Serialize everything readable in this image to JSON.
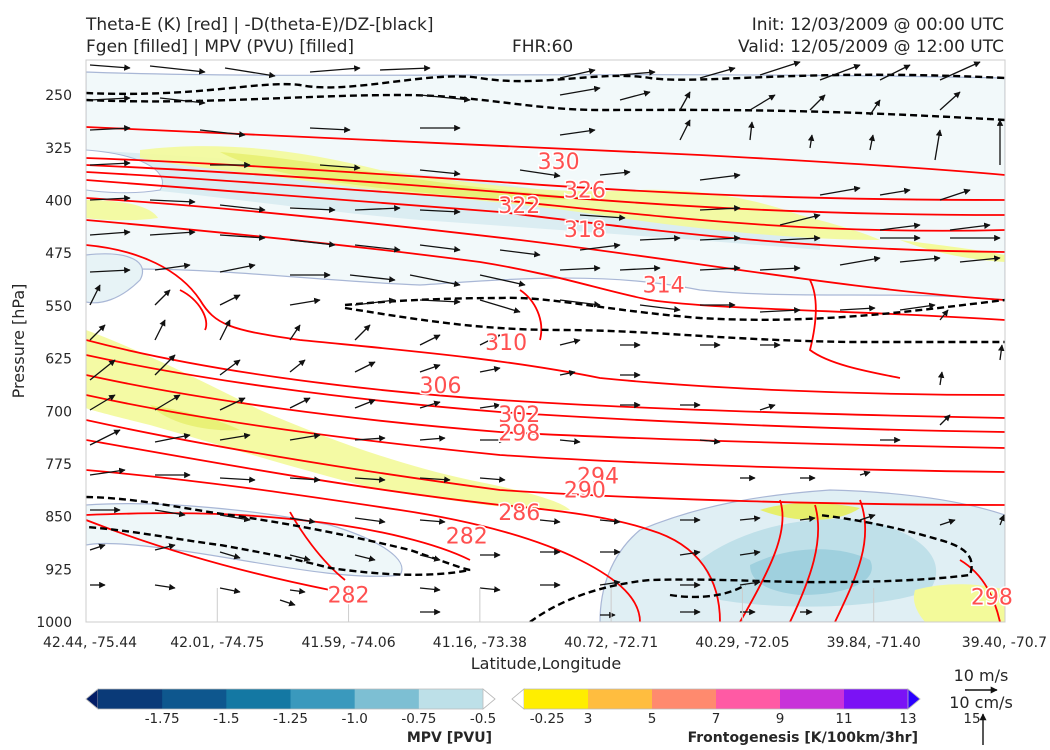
{
  "header": {
    "title_left_1": "Theta-E (K) [red] | -D(theta-E)/DZ-[black]",
    "title_left_2": "Fgen [filled] | MPV (PVU) [filled]",
    "fhr": "FHR:60",
    "init": "Init: 12/03/2009 @ 00:00 UTC",
    "valid": "Valid: 12/05/2009 @ 12:00 UTC"
  },
  "chart_data": {
    "type": "cross-section",
    "xlabel": "Latitude,Longitude",
    "ylabel": "Pressure [hPa]",
    "x_ticks": [
      "42.44, -75.44",
      "42.01, -74.75",
      "41.59, -74.06",
      "41.16, -73.38",
      "40.72, -72.71",
      "40.29, -72.05",
      "39.84, -71.40",
      "39.40, -70.7"
    ],
    "y_ticks": [
      250,
      325,
      400,
      475,
      550,
      625,
      700,
      775,
      850,
      925,
      1000
    ],
    "ylim": [
      1000,
      200
    ],
    "theta_e_contour_labels": [
      {
        "value": 330,
        "x_index": 3.6,
        "pressure": 345
      },
      {
        "value": 326,
        "x_index": 3.8,
        "pressure": 386
      },
      {
        "value": 322,
        "x_index": 3.3,
        "pressure": 408
      },
      {
        "value": 318,
        "x_index": 3.8,
        "pressure": 442
      },
      {
        "value": 314,
        "x_index": 4.4,
        "pressure": 521
      },
      {
        "value": 310,
        "x_index": 3.2,
        "pressure": 603
      },
      {
        "value": 306,
        "x_index": 2.7,
        "pressure": 664
      },
      {
        "value": 302,
        "x_index": 3.3,
        "pressure": 705
      },
      {
        "value": 298,
        "x_index": 3.3,
        "pressure": 732
      },
      {
        "value": 294,
        "x_index": 3.9,
        "pressure": 793
      },
      {
        "value": 290,
        "x_index": 3.8,
        "pressure": 813
      },
      {
        "value": 286,
        "x_index": 3.3,
        "pressure": 845
      },
      {
        "value": 282,
        "x_index": 2.9,
        "pressure": 878
      },
      {
        "value": 282,
        "x_index": 2.0,
        "pressure": 962
      },
      {
        "value": 298,
        "x_index": 6.9,
        "pressure": 965
      }
    ],
    "mpv_colorbar": {
      "label": "MPV [PVU]",
      "ticks": [
        "-1.75",
        "-1.5",
        "-1.25",
        "-1.0",
        "-0.75",
        "-0.5",
        "-0.25"
      ],
      "colors": [
        "#031d66",
        "#0a3a78",
        "#0e578e",
        "#1478a3",
        "#3a99bd",
        "#7dbfd3",
        "#bde0e8",
        "#ffffff"
      ]
    },
    "fgen_colorbar": {
      "label": "Frontogenesis [K/100km/3hr]",
      "ticks": [
        "3",
        "5",
        "7",
        "9",
        "11",
        "13",
        "15"
      ],
      "colors": [
        "#ffffff",
        "#ffee00",
        "#ffbd3f",
        "#ff8a6e",
        "#ff5aa4",
        "#c832d9",
        "#7b12f5",
        "#2b00ff"
      ]
    },
    "vector_key": {
      "wind": "10 m/s",
      "vertical": "10 cm/s"
    }
  },
  "style": {
    "theta_e_color": "#ff0000",
    "neg_dthetae_color": "#000000",
    "mpv_fill": "#d8ecf1",
    "fgen_fill": "#f3fa9a"
  }
}
